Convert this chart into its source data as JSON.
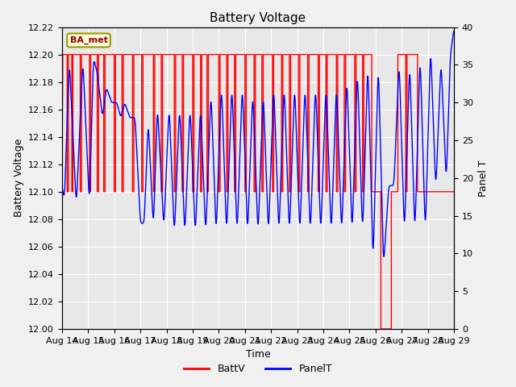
{
  "title": "Battery Voltage",
  "xlabel": "Time",
  "ylabel_left": "Battery Voltage",
  "ylabel_right": "Panel T",
  "legend_label_box": "BA_met",
  "legend_labels": [
    "BattV",
    "PanelT"
  ],
  "batt_color": "red",
  "panel_color": "blue",
  "bg_color": "#f0f0f0",
  "plot_bg_color": "#e8e8e8",
  "ylim_left": [
    12.0,
    12.22
  ],
  "ylim_right": [
    0,
    40
  ],
  "yticks_left": [
    12.0,
    12.02,
    12.04,
    12.06,
    12.08,
    12.1,
    12.12,
    12.14,
    12.16,
    12.18,
    12.2,
    12.22
  ],
  "yticks_right": [
    0,
    5,
    10,
    15,
    20,
    25,
    30,
    35,
    40
  ],
  "xtick_labels": [
    "Aug 14",
    "Aug 15",
    "Aug 16",
    "Aug 17",
    "Aug 18",
    "Aug 19",
    "Aug 20",
    "Aug 21",
    "Aug 22",
    "Aug 23",
    "Aug 24",
    "Aug 25",
    "Aug 26",
    "Aug 27",
    "Aug 28",
    "Aug 29"
  ]
}
